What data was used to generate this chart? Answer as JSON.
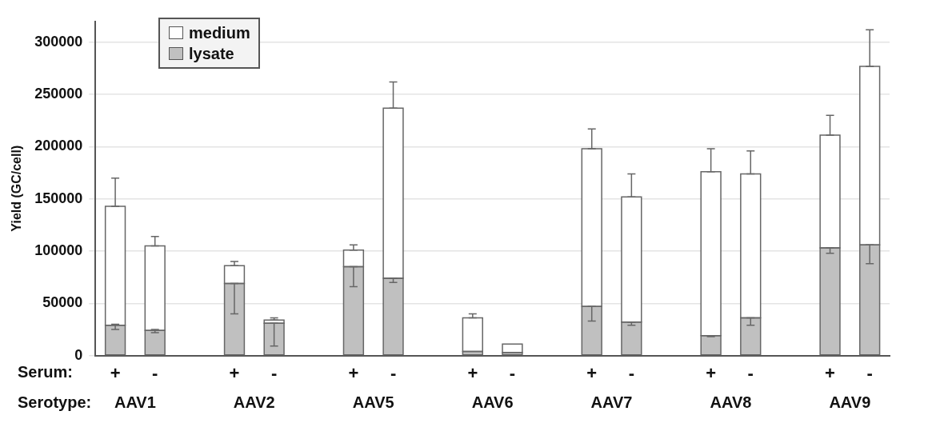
{
  "chart_data": {
    "type": "bar",
    "stacked": true,
    "ylabel": "Yield (GC/cell)",
    "categories": [
      "+",
      "-",
      null,
      "+",
      "-",
      null,
      "+",
      "-",
      null,
      "+",
      "-",
      null,
      "+",
      "-",
      null,
      "+",
      "-",
      null,
      "+",
      "-"
    ],
    "series": [
      {
        "name": "lysate",
        "color": "#c0c0c0",
        "values": [
          29000,
          24000,
          null,
          69000,
          31000,
          null,
          85000,
          74000,
          null,
          4000,
          3000,
          null,
          47000,
          32000,
          null,
          19000,
          36000,
          null,
          103000,
          106000
        ],
        "errors": [
          [
            25000,
            30000
          ],
          [
            22000,
            25000
          ],
          null,
          [
            40000,
            69000
          ],
          [
            9000,
            31000
          ],
          null,
          [
            66000,
            85000
          ],
          [
            70000,
            74000
          ],
          null,
          null,
          null,
          null,
          [
            33000,
            47000
          ],
          [
            29000,
            32000
          ],
          null,
          [
            18000,
            19000
          ],
          [
            29000,
            36000
          ],
          null,
          [
            98000,
            103000
          ],
          [
            88000,
            106000
          ]
        ]
      },
      {
        "name": "medium",
        "color": "#ffffff",
        "values": [
          114000,
          81000,
          null,
          17000,
          3000,
          null,
          16000,
          163000,
          null,
          32000,
          8000,
          null,
          151000,
          120000,
          null,
          157000,
          138000,
          null,
          108000,
          171000
        ],
        "errors": [
          [
            143000,
            170000
          ],
          [
            105000,
            114000
          ],
          null,
          [
            86000,
            90000
          ],
          [
            34000,
            36000
          ],
          null,
          [
            101000,
            106000
          ],
          [
            237000,
            262000
          ],
          null,
          [
            36000,
            40000
          ],
          null,
          null,
          [
            198000,
            217000
          ],
          [
            152000,
            174000
          ],
          null,
          [
            176000,
            198000
          ],
          [
            174000,
            196000
          ],
          null,
          [
            211000,
            230000
          ],
          [
            277000,
            312000
          ]
        ]
      }
    ],
    "ylim": [
      0,
      320000
    ],
    "yticks": [
      0,
      50000,
      100000,
      150000,
      200000,
      250000,
      300000
    ],
    "grid": "y",
    "legend": "top left",
    "annotations": [
      "Serum:",
      "Serotype:",
      "AAV1",
      "AAV2",
      "AAV5",
      "AAV6",
      "AAV7",
      "AAV8",
      "AAV9"
    ]
  }
}
